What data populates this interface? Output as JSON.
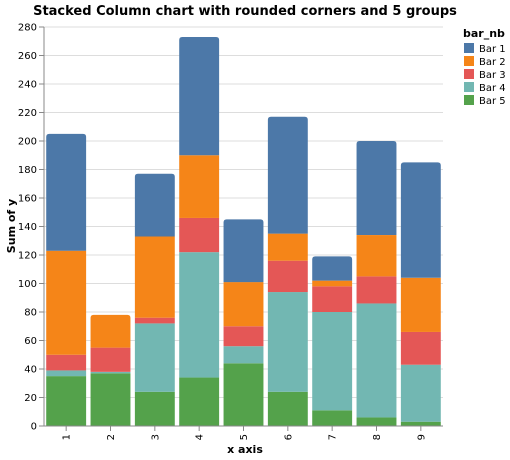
{
  "chart_data": {
    "type": "bar",
    "stacked": true,
    "title": "Stacked Column chart with rounded corners and 5 groups",
    "xlabel": "x axis",
    "ylabel": "Sum of y",
    "categories": [
      "1",
      "2",
      "3",
      "4",
      "5",
      "6",
      "7",
      "8",
      "9"
    ],
    "ylim": [
      0,
      280
    ],
    "yticks": [
      "0",
      "20",
      "40",
      "60",
      "80",
      "100",
      "120",
      "140",
      "160",
      "180",
      "200",
      "220",
      "240",
      "260",
      "280"
    ],
    "grid": true,
    "legend_title": "bar_nb",
    "legend_position": "right",
    "series": [
      {
        "name": "Bar 5",
        "color": "#54a24b",
        "values": [
          35,
          37,
          24,
          34,
          44,
          24,
          11,
          6,
          3
        ]
      },
      {
        "name": "Bar 4",
        "color": "#72b7b2",
        "values": [
          4,
          1,
          48,
          88,
          12,
          70,
          69,
          80,
          40
        ]
      },
      {
        "name": "Bar 3",
        "color": "#e45756",
        "values": [
          11,
          17,
          4,
          24,
          14,
          22,
          18,
          19,
          23
        ]
      },
      {
        "name": "Bar 2",
        "color": "#f58518",
        "values": [
          73,
          23,
          57,
          44,
          31,
          19,
          4,
          29,
          38
        ]
      },
      {
        "name": "Bar 1",
        "color": "#4c78a8",
        "values": [
          82,
          0,
          44,
          83,
          44,
          82,
          17,
          66,
          81
        ]
      }
    ],
    "legend_order": [
      "Bar 1",
      "Bar 2",
      "Bar 3",
      "Bar 4",
      "Bar 5"
    ]
  }
}
